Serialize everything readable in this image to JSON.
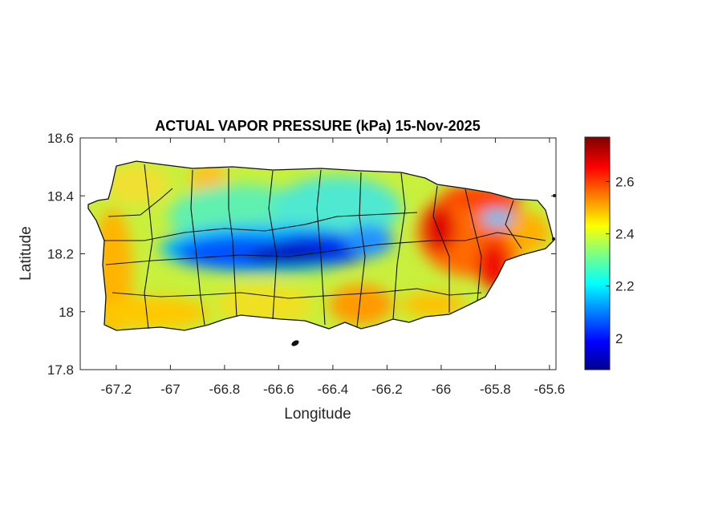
{
  "chart_data": {
    "type": "heatmap",
    "title": "ACTUAL VAPOR PRESSURE (kPa) 15-Nov-2025",
    "xlabel": "Longitude",
    "ylabel": "Latitude",
    "xlim": [
      -67.333,
      -65.576
    ],
    "ylim": [
      17.8,
      18.6
    ],
    "xticks": [
      -67.2,
      -67,
      -66.8,
      -66.6,
      -66.4,
      -66.2,
      -66,
      -65.8,
      -65.6
    ],
    "xtick_labels": [
      "-67.2",
      "-67",
      "-66.8",
      "-66.6",
      "-66.4",
      "-66.2",
      "-66",
      "-65.8",
      "-65.6"
    ],
    "yticks": [
      17.8,
      18,
      18.2,
      18.4,
      18.6
    ],
    "ytick_labels": [
      "17.8",
      "18",
      "18.2",
      "18.4",
      "18.6"
    ],
    "colorbar": {
      "colormap": "jet",
      "range": [
        1.88,
        2.77
      ],
      "ticks": [
        2,
        2.2,
        2.4,
        2.6
      ],
      "tick_labels": [
        "2",
        "2.2",
        "2.4",
        "2.6"
      ]
    },
    "features": [
      {
        "region": "central mountain band",
        "value_approx": 1.95
      },
      {
        "region": "east (around -66.0, 18.25)",
        "value_approx": 2.7
      },
      {
        "region": "southeast coast",
        "value_approx": 2.65
      },
      {
        "region": "west and south coasts",
        "value_approx": 2.5
      }
    ]
  }
}
